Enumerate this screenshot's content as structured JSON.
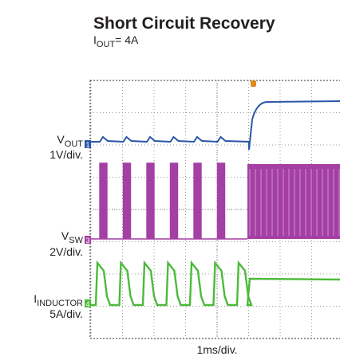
{
  "title": "Short Circuit Recovery",
  "subtitle": {
    "main": "I",
    "sub": "OUT",
    "rest": "= 4A"
  },
  "channels": [
    {
      "main": "V",
      "sub": "OUT",
      "scale": "1V/div.",
      "marker": "1"
    },
    {
      "main": "V",
      "sub": "SW",
      "scale": "2V/div.",
      "marker": "3"
    },
    {
      "main": "I",
      "sub": "INDUCTOR",
      "scale": "5A/div.",
      "marker": "4"
    }
  ],
  "x_label": "1ms/div."
}
